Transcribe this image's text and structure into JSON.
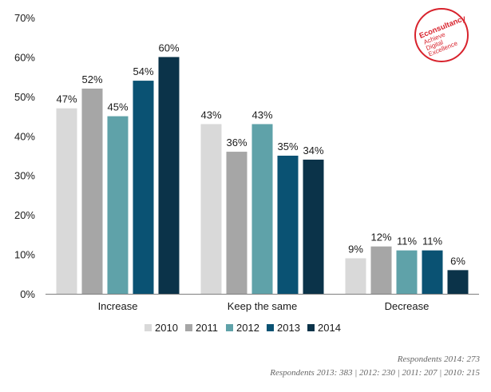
{
  "logo": {
    "name": "Econsultancy",
    "tagline_lines": [
      "Achieve",
      "Digital",
      "Excellence"
    ],
    "color": "#d8222c"
  },
  "footnotes": {
    "line1": "Respondents 2014: 273",
    "line2": "Respondents 2013: 383 | 2012: 230 | 2011: 207 | 2010: 215"
  },
  "chart_data": {
    "type": "bar",
    "title": "",
    "xlabel": "",
    "ylabel": "",
    "ylim": [
      0,
      70
    ],
    "yticks": [
      0,
      10,
      20,
      30,
      40,
      50,
      60,
      70
    ],
    "ytick_labels": [
      "0%",
      "10%",
      "20%",
      "30%",
      "40%",
      "50%",
      "60%",
      "70%"
    ],
    "grid": false,
    "legend_position": "bottom",
    "categories": [
      "Increase",
      "Keep the same",
      "Decrease"
    ],
    "series": [
      {
        "name": "2010",
        "color": "#d9d9d9",
        "values": [
          47,
          43,
          9
        ],
        "labels": [
          "47%",
          "43%",
          "9%"
        ]
      },
      {
        "name": "2011",
        "color": "#a6a6a6",
        "values": [
          52,
          36,
          12
        ],
        "labels": [
          "52%",
          "36%",
          "12%"
        ]
      },
      {
        "name": "2012",
        "color": "#5fa2a9",
        "values": [
          45,
          43,
          11
        ],
        "labels": [
          "45%",
          "43%",
          "11%"
        ]
      },
      {
        "name": "2013",
        "color": "#0a5273",
        "values": [
          54,
          35,
          11
        ],
        "labels": [
          "54%",
          "35%",
          "11%"
        ]
      },
      {
        "name": "2014",
        "color": "#0b3349",
        "values": [
          60,
          34,
          6
        ],
        "labels": [
          "60%",
          "34%",
          "6%"
        ]
      }
    ]
  }
}
